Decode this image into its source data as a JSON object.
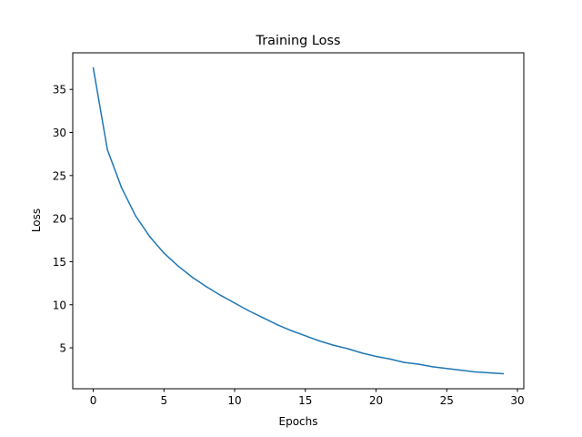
{
  "chart_data": {
    "type": "line",
    "title": "Training Loss",
    "xlabel": "Epochs",
    "ylabel": "Loss",
    "xlim": [
      -1.45,
      30.45
    ],
    "ylim": [
      0.25,
      39.25
    ],
    "x_ticks": [
      0,
      5,
      10,
      15,
      20,
      25,
      30
    ],
    "y_ticks": [
      5,
      10,
      15,
      20,
      25,
      30,
      35
    ],
    "grid": false,
    "line_color": "#1f77b4",
    "series": [
      {
        "x": [
          0,
          1,
          2,
          3,
          4,
          5,
          6,
          7,
          8,
          9,
          10,
          11,
          12,
          13,
          14,
          15,
          16,
          17,
          18,
          19,
          20,
          21,
          22,
          23,
          24,
          25,
          26,
          27,
          28,
          29
        ],
        "values": [
          37.5,
          28.0,
          23.6,
          20.3,
          17.9,
          16.0,
          14.5,
          13.2,
          12.1,
          11.1,
          10.2,
          9.3,
          8.5,
          7.7,
          7.0,
          6.4,
          5.8,
          5.3,
          4.9,
          4.4,
          4.0,
          3.7,
          3.3,
          3.1,
          2.8,
          2.6,
          2.4,
          2.2,
          2.1,
          2.0
        ]
      }
    ]
  }
}
